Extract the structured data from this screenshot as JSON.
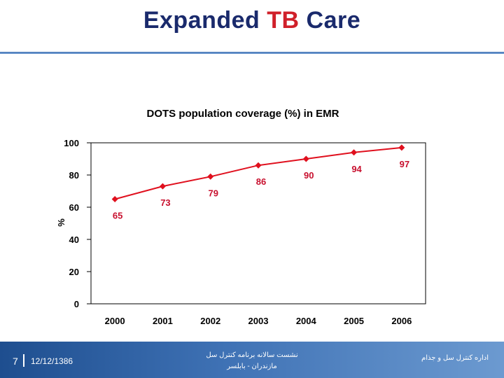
{
  "slide": {
    "title_part1": "Expanded ",
    "title_accent": "TB",
    "title_part2": " Care"
  },
  "footer": {
    "page_number": "7",
    "date": "12/12/1386",
    "center_line1": "نشست سالانه برنامه کنترل سل",
    "center_line2": "مازندران - بابلسر",
    "right_text": "اداره کنترل سل و جذام"
  },
  "colors": {
    "title": "#1a2a6c",
    "accent": "#d0202a",
    "series": "#e0101e",
    "footer_start": "#1e4e8f",
    "footer_end": "#6c9ad0"
  },
  "chart_data": {
    "type": "line",
    "title": "DOTS population coverage (%) in EMR",
    "xlabel": "",
    "ylabel": "%",
    "categories": [
      "2000",
      "2001",
      "2002",
      "2003",
      "2004",
      "2005",
      "2006"
    ],
    "series": [
      {
        "values": [
          65,
          73,
          79,
          86,
          90,
          94,
          97
        ]
      }
    ],
    "data_labels": [
      "65",
      "73",
      "79",
      "86",
      "90",
      "94",
      "97"
    ],
    "ylim": [
      0,
      100
    ],
    "yticks": [
      "0",
      "20",
      "40",
      "60",
      "80",
      "100"
    ],
    "grid": false,
    "legend": "none"
  }
}
